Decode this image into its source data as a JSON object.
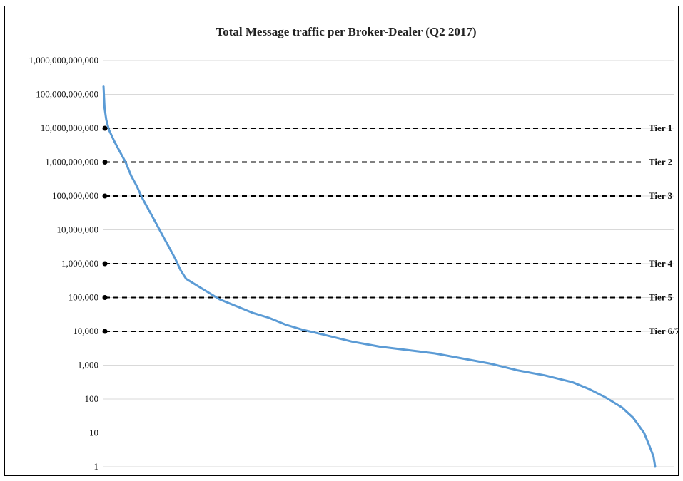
{
  "chart_data": {
    "type": "line",
    "title": "Total Message traffic per Broker-Dealer (Q2 2017)",
    "xlabel": "",
    "ylabel": "",
    "yscale": "log",
    "ylim": [
      1,
      1000000000000
    ],
    "grid": true,
    "legend": "none",
    "yticks": [
      "1,000,000,000,000",
      "100,000,000,000",
      "10,000,000,000",
      "1,000,000,000",
      "100,000,000",
      "10,000,000",
      "1,000,000",
      "100,000",
      "10,000",
      "1,000",
      "100",
      "10",
      "1"
    ],
    "ytick_values": [
      1000000000000,
      100000000000,
      10000000000,
      1000000000,
      100000000,
      10000000,
      1000000,
      100000,
      10000,
      1000,
      100,
      10,
      1
    ],
    "tiers": [
      {
        "label": "Tier 1",
        "value": 10000000000
      },
      {
        "label": "Tier 2",
        "value": 1000000000
      },
      {
        "label": "Tier 3",
        "value": 100000000
      },
      {
        "label": "Tier 4",
        "value": 1000000
      },
      {
        "label": "Tier 5",
        "value": 100000
      },
      {
        "label": "Tier 6/7",
        "value": 10000
      }
    ],
    "series": [
      {
        "values_log10": [
          [
            0.0,
            11.25
          ],
          [
            0.2,
            10.6
          ],
          [
            0.5,
            10.25
          ],
          [
            1.0,
            9.95
          ],
          [
            2.0,
            9.6
          ],
          [
            3.0,
            9.3
          ],
          [
            4.0,
            9.0
          ],
          [
            5.0,
            8.6
          ],
          [
            6.0,
            8.3
          ],
          [
            7.0,
            7.95
          ],
          [
            8.0,
            7.65
          ],
          [
            9.0,
            7.35
          ],
          [
            10.0,
            7.05
          ],
          [
            11.0,
            6.75
          ],
          [
            12.0,
            6.45
          ],
          [
            13.0,
            6.15
          ],
          [
            14.0,
            5.8
          ],
          [
            15.0,
            5.55
          ],
          [
            17.0,
            5.35
          ],
          [
            19.0,
            5.15
          ],
          [
            21.0,
            4.95
          ],
          [
            24.0,
            4.75
          ],
          [
            27.0,
            4.55
          ],
          [
            30.0,
            4.4
          ],
          [
            33.0,
            4.2
          ],
          [
            36.0,
            4.05
          ],
          [
            40.0,
            3.9
          ],
          [
            45.0,
            3.7
          ],
          [
            50.0,
            3.55
          ],
          [
            55.0,
            3.45
          ],
          [
            60.0,
            3.35
          ],
          [
            65.0,
            3.2
          ],
          [
            70.0,
            3.05
          ],
          [
            75.0,
            2.85
          ],
          [
            80.0,
            2.7
          ],
          [
            85.0,
            2.5
          ],
          [
            88.0,
            2.3
          ],
          [
            91.0,
            2.05
          ],
          [
            94.0,
            1.75
          ],
          [
            96.0,
            1.45
          ],
          [
            98.0,
            1.0
          ],
          [
            99.0,
            0.6
          ],
          [
            99.7,
            0.3
          ],
          [
            100.0,
            0.0
          ]
        ]
      }
    ]
  }
}
